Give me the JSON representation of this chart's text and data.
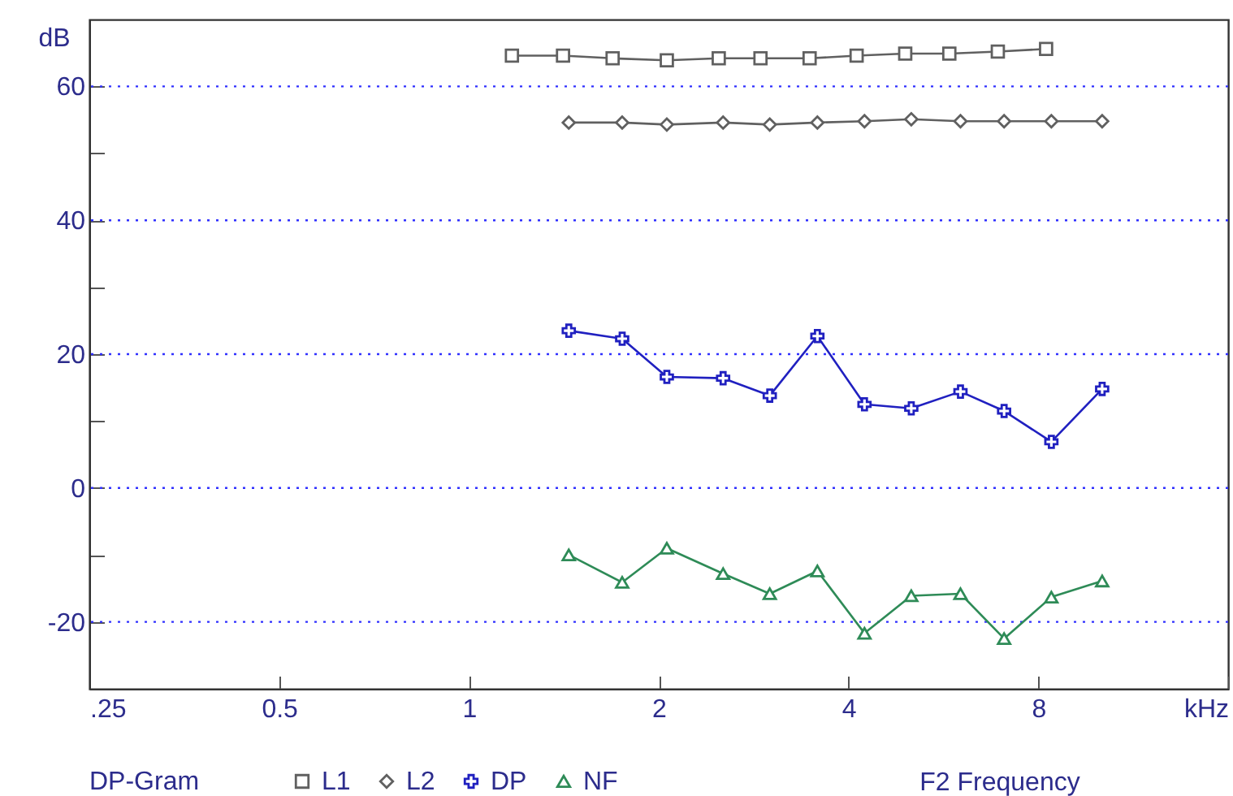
{
  "chart_data": {
    "type": "line",
    "ylabel": "dB",
    "xlabel": "F2 Frequency",
    "legend_title": "DP-Gram",
    "log": "x",
    "grid": "y",
    "legend": "bottom",
    "xlim": [
      0.25,
      16
    ],
    "xticks": [
      {
        "value": 0.25,
        "label": ".25"
      },
      0.5,
      1,
      2,
      4,
      8,
      {
        "value": 16,
        "label": "kHz"
      }
    ],
    "ylim": [
      -30,
      70
    ],
    "yticks": [
      -20,
      {
        "value": -10,
        "label": null
      },
      0,
      {
        "value": 10,
        "label": null
      },
      20,
      {
        "value": 30,
        "label": null
      },
      40,
      {
        "value": 50,
        "label": null
      },
      60
    ],
    "series": [
      {
        "name": "L1",
        "color": "#606060",
        "marker": "square",
        "x": [
          1.17,
          1.41,
          1.69,
          2.06,
          2.49,
          2.9,
          3.47,
          4.12,
          4.92,
          5.78,
          6.9,
          8.23
        ],
        "values": [
          64.6,
          64.6,
          64.2,
          63.9,
          64.2,
          64.2,
          64.2,
          64.6,
          64.9,
          64.9,
          65.2,
          65.6
        ]
      },
      {
        "name": "L2",
        "color": "#606060",
        "marker": "diamond",
        "x": [
          1.44,
          1.75,
          2.06,
          2.53,
          3.0,
          3.57,
          4.24,
          5.03,
          6.02,
          7.06,
          8.39,
          10.1
        ],
        "values": [
          54.6,
          54.6,
          54.3,
          54.6,
          54.3,
          54.6,
          54.8,
          55.1,
          54.8,
          54.8,
          54.8,
          54.8
        ]
      },
      {
        "name": "DP",
        "color": "#2020c0",
        "marker": "cross",
        "x": [
          1.44,
          1.75,
          2.06,
          2.53,
          3.0,
          3.57,
          4.24,
          5.03,
          6.02,
          7.06,
          8.39,
          10.1
        ],
        "values": [
          23.5,
          22.3,
          16.6,
          16.4,
          13.8,
          22.7,
          12.5,
          11.9,
          14.4,
          11.5,
          6.9,
          14.8
        ]
      },
      {
        "name": "NF",
        "color": "#2e8b57",
        "marker": "triangle",
        "x": [
          1.44,
          1.75,
          2.06,
          2.53,
          3.0,
          3.57,
          4.24,
          5.03,
          6.02,
          7.06,
          8.39,
          10.1
        ],
        "values": [
          -10.0,
          -14.1,
          -9.0,
          -12.8,
          -15.8,
          -12.4,
          -21.7,
          -16.1,
          -15.8,
          -22.5,
          -16.3,
          -13.9
        ]
      }
    ]
  }
}
